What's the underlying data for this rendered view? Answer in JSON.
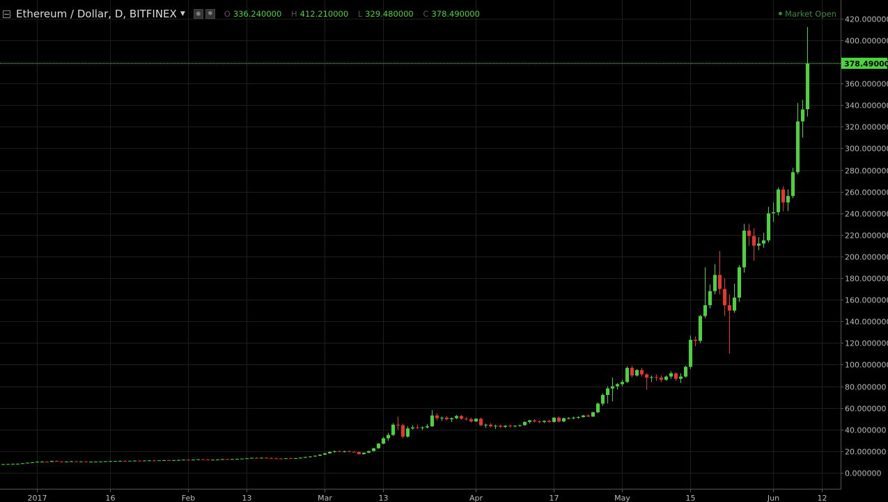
{
  "header": {
    "symbol": "Ethereum / Dollar, D, BITFINEX",
    "open_label": "O",
    "open_value": "336.240000",
    "high_label": "H",
    "high_value": "412.210000",
    "low_label": "L",
    "low_value": "329.480000",
    "close_label": "C",
    "close_value": "378.490000",
    "market_status": "Market Open"
  },
  "colors": {
    "background": "#000000",
    "up": "#4cd23c",
    "down": "#e8362c",
    "grid": "#1e1e1e",
    "last_price_line": "#4cd23c"
  },
  "chart_data": {
    "type": "candlestick",
    "title": "Ethereum / Dollar, D, BITFINEX",
    "ylim": [
      -10,
      432
    ],
    "y_ticks": [
      "0.000000",
      "20.000000",
      "40.000000",
      "60.000000",
      "80.000000",
      "100.000000",
      "120.000000",
      "140.000000",
      "160.000000",
      "180.000000",
      "200.000000",
      "220.000000",
      "240.000000",
      "260.000000",
      "280.000000",
      "300.000000",
      "320.000000",
      "340.000000",
      "360.000000",
      "380.000000",
      "400.000000",
      "420.000000"
    ],
    "x_ticks": [
      {
        "label": "2017",
        "index": 7
      },
      {
        "label": "16",
        "index": 22
      },
      {
        "label": "Feb",
        "index": 38
      },
      {
        "label": "13",
        "index": 50
      },
      {
        "label": "Mar",
        "index": 66
      },
      {
        "label": "13",
        "index": 78
      },
      {
        "label": "Apr",
        "index": 97
      },
      {
        "label": "17",
        "index": 113
      },
      {
        "label": "May",
        "index": 127
      },
      {
        "label": "15",
        "index": 141
      },
      {
        "label": "Jun",
        "index": 158
      },
      {
        "label": "12",
        "index": 168
      }
    ],
    "last_price": "378.490000",
    "grid": true,
    "candles": [
      {
        "o": 7.8,
        "h": 8.2,
        "l": 7.5,
        "c": 8.0
      },
      {
        "o": 8.0,
        "h": 8.3,
        "l": 7.7,
        "c": 8.1
      },
      {
        "o": 8.1,
        "h": 8.5,
        "l": 7.9,
        "c": 8.2
      },
      {
        "o": 8.2,
        "h": 8.6,
        "l": 8.0,
        "c": 8.3
      },
      {
        "o": 8.3,
        "h": 9.0,
        "l": 8.1,
        "c": 8.8
      },
      {
        "o": 8.8,
        "h": 9.5,
        "l": 8.6,
        "c": 9.3
      },
      {
        "o": 9.3,
        "h": 10.0,
        "l": 9.0,
        "c": 9.7
      },
      {
        "o": 9.7,
        "h": 10.5,
        "l": 9.5,
        "c": 10.2
      },
      {
        "o": 10.2,
        "h": 10.8,
        "l": 9.8,
        "c": 10.3
      },
      {
        "o": 10.3,
        "h": 10.6,
        "l": 9.7,
        "c": 10.1
      },
      {
        "o": 10.1,
        "h": 11.2,
        "l": 9.9,
        "c": 10.9
      },
      {
        "o": 10.9,
        "h": 11.3,
        "l": 10.2,
        "c": 10.5
      },
      {
        "o": 10.5,
        "h": 10.8,
        "l": 10.0,
        "c": 10.2
      },
      {
        "o": 10.2,
        "h": 10.6,
        "l": 9.8,
        "c": 10.4
      },
      {
        "o": 10.4,
        "h": 10.9,
        "l": 10.1,
        "c": 10.6
      },
      {
        "o": 10.6,
        "h": 10.8,
        "l": 10.1,
        "c": 10.3
      },
      {
        "o": 10.3,
        "h": 10.6,
        "l": 9.9,
        "c": 10.5
      },
      {
        "o": 10.5,
        "h": 10.7,
        "l": 10.1,
        "c": 10.2
      },
      {
        "o": 10.2,
        "h": 10.5,
        "l": 9.9,
        "c": 10.3
      },
      {
        "o": 10.3,
        "h": 10.6,
        "l": 10.0,
        "c": 10.4
      },
      {
        "o": 10.4,
        "h": 10.7,
        "l": 10.1,
        "c": 10.5
      },
      {
        "o": 10.5,
        "h": 10.8,
        "l": 10.2,
        "c": 10.7
      },
      {
        "o": 10.7,
        "h": 11.0,
        "l": 10.4,
        "c": 10.8
      },
      {
        "o": 10.8,
        "h": 11.1,
        "l": 10.5,
        "c": 10.9
      },
      {
        "o": 10.9,
        "h": 11.3,
        "l": 10.6,
        "c": 11.0
      },
      {
        "o": 11.0,
        "h": 11.4,
        "l": 10.7,
        "c": 10.9
      },
      {
        "o": 10.9,
        "h": 11.2,
        "l": 10.6,
        "c": 11.1
      },
      {
        "o": 11.1,
        "h": 11.5,
        "l": 10.8,
        "c": 11.2
      },
      {
        "o": 11.2,
        "h": 11.6,
        "l": 10.9,
        "c": 11.0
      },
      {
        "o": 11.0,
        "h": 11.4,
        "l": 10.8,
        "c": 11.3
      },
      {
        "o": 11.3,
        "h": 11.7,
        "l": 11.0,
        "c": 11.4
      },
      {
        "o": 11.4,
        "h": 11.8,
        "l": 11.1,
        "c": 11.2
      },
      {
        "o": 11.2,
        "h": 11.6,
        "l": 10.9,
        "c": 11.5
      },
      {
        "o": 11.5,
        "h": 11.9,
        "l": 11.2,
        "c": 11.6
      },
      {
        "o": 11.6,
        "h": 12.0,
        "l": 11.3,
        "c": 11.4
      },
      {
        "o": 11.4,
        "h": 11.8,
        "l": 11.1,
        "c": 11.7
      },
      {
        "o": 11.7,
        "h": 12.1,
        "l": 11.4,
        "c": 11.8
      },
      {
        "o": 11.8,
        "h": 12.3,
        "l": 11.5,
        "c": 12.1
      },
      {
        "o": 12.1,
        "h": 12.5,
        "l": 11.8,
        "c": 12.0
      },
      {
        "o": 12.0,
        "h": 12.4,
        "l": 11.7,
        "c": 12.2
      },
      {
        "o": 12.2,
        "h": 12.7,
        "l": 11.9,
        "c": 12.5
      },
      {
        "o": 12.5,
        "h": 12.9,
        "l": 12.1,
        "c": 12.3
      },
      {
        "o": 12.3,
        "h": 12.6,
        "l": 11.9,
        "c": 12.0
      },
      {
        "o": 12.0,
        "h": 12.4,
        "l": 11.7,
        "c": 12.1
      },
      {
        "o": 12.1,
        "h": 12.5,
        "l": 11.8,
        "c": 12.3
      },
      {
        "o": 12.3,
        "h": 12.8,
        "l": 12.0,
        "c": 12.6
      },
      {
        "o": 12.6,
        "h": 13.0,
        "l": 12.2,
        "c": 12.4
      },
      {
        "o": 12.4,
        "h": 12.8,
        "l": 12.1,
        "c": 12.7
      },
      {
        "o": 12.7,
        "h": 13.1,
        "l": 12.4,
        "c": 12.8
      },
      {
        "o": 12.8,
        "h": 13.3,
        "l": 12.5,
        "c": 13.1
      },
      {
        "o": 13.1,
        "h": 13.6,
        "l": 12.8,
        "c": 13.4
      },
      {
        "o": 13.4,
        "h": 14.0,
        "l": 13.1,
        "c": 13.8
      },
      {
        "o": 13.8,
        "h": 14.3,
        "l": 13.2,
        "c": 13.5
      },
      {
        "o": 13.5,
        "h": 14.1,
        "l": 13.2,
        "c": 13.9
      },
      {
        "o": 13.9,
        "h": 14.4,
        "l": 13.5,
        "c": 13.6
      },
      {
        "o": 13.6,
        "h": 14.0,
        "l": 13.1,
        "c": 13.3
      },
      {
        "o": 13.3,
        "h": 13.8,
        "l": 12.9,
        "c": 13.2
      },
      {
        "o": 13.2,
        "h": 13.7,
        "l": 12.8,
        "c": 13.0
      },
      {
        "o": 13.0,
        "h": 13.6,
        "l": 12.7,
        "c": 13.4
      },
      {
        "o": 13.4,
        "h": 13.9,
        "l": 13.0,
        "c": 13.1
      },
      {
        "o": 13.1,
        "h": 13.7,
        "l": 12.8,
        "c": 13.5
      },
      {
        "o": 13.5,
        "h": 14.2,
        "l": 13.2,
        "c": 14.0
      },
      {
        "o": 14.0,
        "h": 14.8,
        "l": 13.7,
        "c": 14.6
      },
      {
        "o": 14.6,
        "h": 15.4,
        "l": 14.3,
        "c": 15.1
      },
      {
        "o": 15.1,
        "h": 16.0,
        "l": 14.8,
        "c": 15.8
      },
      {
        "o": 15.8,
        "h": 17.0,
        "l": 15.4,
        "c": 16.8
      },
      {
        "o": 16.8,
        "h": 18.4,
        "l": 16.5,
        "c": 18.0
      },
      {
        "o": 18.0,
        "h": 19.8,
        "l": 17.6,
        "c": 19.4
      },
      {
        "o": 19.4,
        "h": 20.6,
        "l": 18.6,
        "c": 19.9
      },
      {
        "o": 19.9,
        "h": 20.8,
        "l": 19.1,
        "c": 19.5
      },
      {
        "o": 19.5,
        "h": 20.4,
        "l": 18.8,
        "c": 19.8
      },
      {
        "o": 19.8,
        "h": 20.7,
        "l": 19.2,
        "c": 19.4
      },
      {
        "o": 19.4,
        "h": 20.1,
        "l": 18.7,
        "c": 19.2
      },
      {
        "o": 19.2,
        "h": 19.6,
        "l": 16.8,
        "c": 17.3
      },
      {
        "o": 17.3,
        "h": 18.9,
        "l": 16.9,
        "c": 18.6
      },
      {
        "o": 18.6,
        "h": 20.5,
        "l": 18.2,
        "c": 20.1
      },
      {
        "o": 20.1,
        "h": 23.0,
        "l": 19.8,
        "c": 22.7
      },
      {
        "o": 22.7,
        "h": 27.5,
        "l": 22.2,
        "c": 27.0
      },
      {
        "o": 27.0,
        "h": 33.0,
        "l": 26.4,
        "c": 31.9
      },
      {
        "o": 31.9,
        "h": 37.0,
        "l": 29.8,
        "c": 35.0
      },
      {
        "o": 35.0,
        "h": 46.0,
        "l": 34.0,
        "c": 44.5
      },
      {
        "o": 44.5,
        "h": 52.0,
        "l": 40.0,
        "c": 44.0
      },
      {
        "o": 44.0,
        "h": 45.5,
        "l": 32.0,
        "c": 33.5
      },
      {
        "o": 33.5,
        "h": 43.0,
        "l": 32.5,
        "c": 41.0
      },
      {
        "o": 41.0,
        "h": 44.0,
        "l": 40.0,
        "c": 42.0
      },
      {
        "o": 42.0,
        "h": 44.5,
        "l": 40.5,
        "c": 41.5
      },
      {
        "o": 41.5,
        "h": 43.0,
        "l": 39.5,
        "c": 42.0
      },
      {
        "o": 42.0,
        "h": 45.0,
        "l": 41.0,
        "c": 43.0
      },
      {
        "o": 43.0,
        "h": 58.0,
        "l": 42.5,
        "c": 53.0
      },
      {
        "o": 53.0,
        "h": 55.0,
        "l": 48.5,
        "c": 50.5
      },
      {
        "o": 50.5,
        "h": 52.0,
        "l": 48.0,
        "c": 51.0
      },
      {
        "o": 51.0,
        "h": 52.5,
        "l": 48.5,
        "c": 49.5
      },
      {
        "o": 49.5,
        "h": 51.0,
        "l": 47.0,
        "c": 50.5
      },
      {
        "o": 50.5,
        "h": 53.5,
        "l": 49.5,
        "c": 52.5
      },
      {
        "o": 52.5,
        "h": 53.5,
        "l": 49.0,
        "c": 50.0
      },
      {
        "o": 50.0,
        "h": 51.5,
        "l": 48.5,
        "c": 49.5
      },
      {
        "o": 49.5,
        "h": 51.0,
        "l": 46.5,
        "c": 47.5
      },
      {
        "o": 47.5,
        "h": 50.5,
        "l": 47.0,
        "c": 50.0
      },
      {
        "o": 50.0,
        "h": 51.0,
        "l": 43.0,
        "c": 44.0
      },
      {
        "o": 44.0,
        "h": 45.5,
        "l": 41.5,
        "c": 44.5
      },
      {
        "o": 44.5,
        "h": 46.0,
        "l": 42.0,
        "c": 43.0
      },
      {
        "o": 43.0,
        "h": 44.5,
        "l": 40.5,
        "c": 43.5
      },
      {
        "o": 43.5,
        "h": 44.5,
        "l": 41.5,
        "c": 42.5
      },
      {
        "o": 42.5,
        "h": 44.0,
        "l": 41.5,
        "c": 43.5
      },
      {
        "o": 43.5,
        "h": 44.5,
        "l": 42.0,
        "c": 43.0
      },
      {
        "o": 43.0,
        "h": 44.0,
        "l": 42.0,
        "c": 43.5
      },
      {
        "o": 43.5,
        "h": 44.5,
        "l": 42.5,
        "c": 44.0
      },
      {
        "o": 44.0,
        "h": 47.5,
        "l": 43.5,
        "c": 47.0
      },
      {
        "o": 47.0,
        "h": 49.0,
        "l": 45.5,
        "c": 48.5
      },
      {
        "o": 48.5,
        "h": 49.5,
        "l": 46.5,
        "c": 47.5
      },
      {
        "o": 47.5,
        "h": 48.5,
        "l": 46.0,
        "c": 47.0
      },
      {
        "o": 47.0,
        "h": 48.5,
        "l": 46.0,
        "c": 48.0
      },
      {
        "o": 48.0,
        "h": 49.0,
        "l": 46.5,
        "c": 47.0
      },
      {
        "o": 47.0,
        "h": 51.5,
        "l": 46.5,
        "c": 51.0
      },
      {
        "o": 51.0,
        "h": 52.0,
        "l": 46.5,
        "c": 47.5
      },
      {
        "o": 47.5,
        "h": 51.0,
        "l": 47.0,
        "c": 50.5
      },
      {
        "o": 50.5,
        "h": 51.5,
        "l": 49.5,
        "c": 50.5
      },
      {
        "o": 50.5,
        "h": 52.0,
        "l": 49.5,
        "c": 51.0
      },
      {
        "o": 51.0,
        "h": 52.5,
        "l": 50.0,
        "c": 51.5
      },
      {
        "o": 51.5,
        "h": 53.5,
        "l": 51.0,
        "c": 53.0
      },
      {
        "o": 53.0,
        "h": 54.0,
        "l": 51.5,
        "c": 52.0
      },
      {
        "o": 52.0,
        "h": 56.5,
        "l": 51.5,
        "c": 56.0
      },
      {
        "o": 56.0,
        "h": 65.0,
        "l": 55.0,
        "c": 64.0
      },
      {
        "o": 64.0,
        "h": 73.5,
        "l": 62.0,
        "c": 72.0
      },
      {
        "o": 72.0,
        "h": 80.0,
        "l": 64.0,
        "c": 78.0
      },
      {
        "o": 78.0,
        "h": 88.0,
        "l": 66.0,
        "c": 80.0
      },
      {
        "o": 80.0,
        "h": 83.0,
        "l": 77.0,
        "c": 82.0
      },
      {
        "o": 82.0,
        "h": 86.0,
        "l": 80.0,
        "c": 84.0
      },
      {
        "o": 84.0,
        "h": 98.5,
        "l": 83.0,
        "c": 97.0
      },
      {
        "o": 97.0,
        "h": 99.0,
        "l": 88.0,
        "c": 90.0
      },
      {
        "o": 90.0,
        "h": 96.0,
        "l": 89.0,
        "c": 95.0
      },
      {
        "o": 95.0,
        "h": 97.0,
        "l": 89.0,
        "c": 91.0
      },
      {
        "o": 91.0,
        "h": 92.0,
        "l": 77.0,
        "c": 88.0
      },
      {
        "o": 88.0,
        "h": 90.0,
        "l": 84.0,
        "c": 88.5
      },
      {
        "o": 88.5,
        "h": 91.0,
        "l": 85.0,
        "c": 88.0
      },
      {
        "o": 88.0,
        "h": 90.0,
        "l": 84.0,
        "c": 86.0
      },
      {
        "o": 86.0,
        "h": 90.0,
        "l": 85.0,
        "c": 89.0
      },
      {
        "o": 89.0,
        "h": 94.0,
        "l": 87.0,
        "c": 92.0
      },
      {
        "o": 92.0,
        "h": 93.0,
        "l": 85.0,
        "c": 87.0
      },
      {
        "o": 87.0,
        "h": 92.0,
        "l": 83.0,
        "c": 89.0
      },
      {
        "o": 89.0,
        "h": 99.0,
        "l": 88.0,
        "c": 98.0
      },
      {
        "o": 98.0,
        "h": 127.0,
        "l": 96.0,
        "c": 123.0
      },
      {
        "o": 123.0,
        "h": 126.0,
        "l": 117.0,
        "c": 122.0
      },
      {
        "o": 122.0,
        "h": 146.0,
        "l": 120.0,
        "c": 145.0
      },
      {
        "o": 145.0,
        "h": 190.0,
        "l": 143.0,
        "c": 155.0
      },
      {
        "o": 155.0,
        "h": 174.0,
        "l": 152.0,
        "c": 168.0
      },
      {
        "o": 168.0,
        "h": 193.0,
        "l": 165.0,
        "c": 183.0
      },
      {
        "o": 183.0,
        "h": 205.0,
        "l": 165.0,
        "c": 170.0
      },
      {
        "o": 170.0,
        "h": 180.0,
        "l": 145.0,
        "c": 155.0
      },
      {
        "o": 155.0,
        "h": 165.0,
        "l": 110.0,
        "c": 150.0
      },
      {
        "o": 150.0,
        "h": 175.0,
        "l": 148.0,
        "c": 162.0
      },
      {
        "o": 162.0,
        "h": 192.0,
        "l": 158.0,
        "c": 190.0
      },
      {
        "o": 190.0,
        "h": 230.0,
        "l": 185.0,
        "c": 224.0
      },
      {
        "o": 224.0,
        "h": 230.0,
        "l": 210.0,
        "c": 219.0
      },
      {
        "o": 219.0,
        "h": 226.0,
        "l": 196.0,
        "c": 210.0
      },
      {
        "o": 210.0,
        "h": 218.0,
        "l": 206.0,
        "c": 212.0
      },
      {
        "o": 212.0,
        "h": 222.0,
        "l": 208.0,
        "c": 215.0
      },
      {
        "o": 215.0,
        "h": 246.0,
        "l": 213.0,
        "c": 240.0
      },
      {
        "o": 240.0,
        "h": 250.0,
        "l": 232.0,
        "c": 241.0
      },
      {
        "o": 241.0,
        "h": 264.0,
        "l": 238.0,
        "c": 262.0
      },
      {
        "o": 262.0,
        "h": 265.0,
        "l": 242.0,
        "c": 250.0
      },
      {
        "o": 250.0,
        "h": 262.0,
        "l": 242.0,
        "c": 256.0
      },
      {
        "o": 256.0,
        "h": 282.0,
        "l": 254.0,
        "c": 278.0
      },
      {
        "o": 278.0,
        "h": 342.0,
        "l": 276.0,
        "c": 325.0
      },
      {
        "o": 325.0,
        "h": 345.0,
        "l": 310.0,
        "c": 336.0
      },
      {
        "o": 336.24,
        "h": 412.21,
        "l": 329.48,
        "c": 378.49
      }
    ]
  }
}
